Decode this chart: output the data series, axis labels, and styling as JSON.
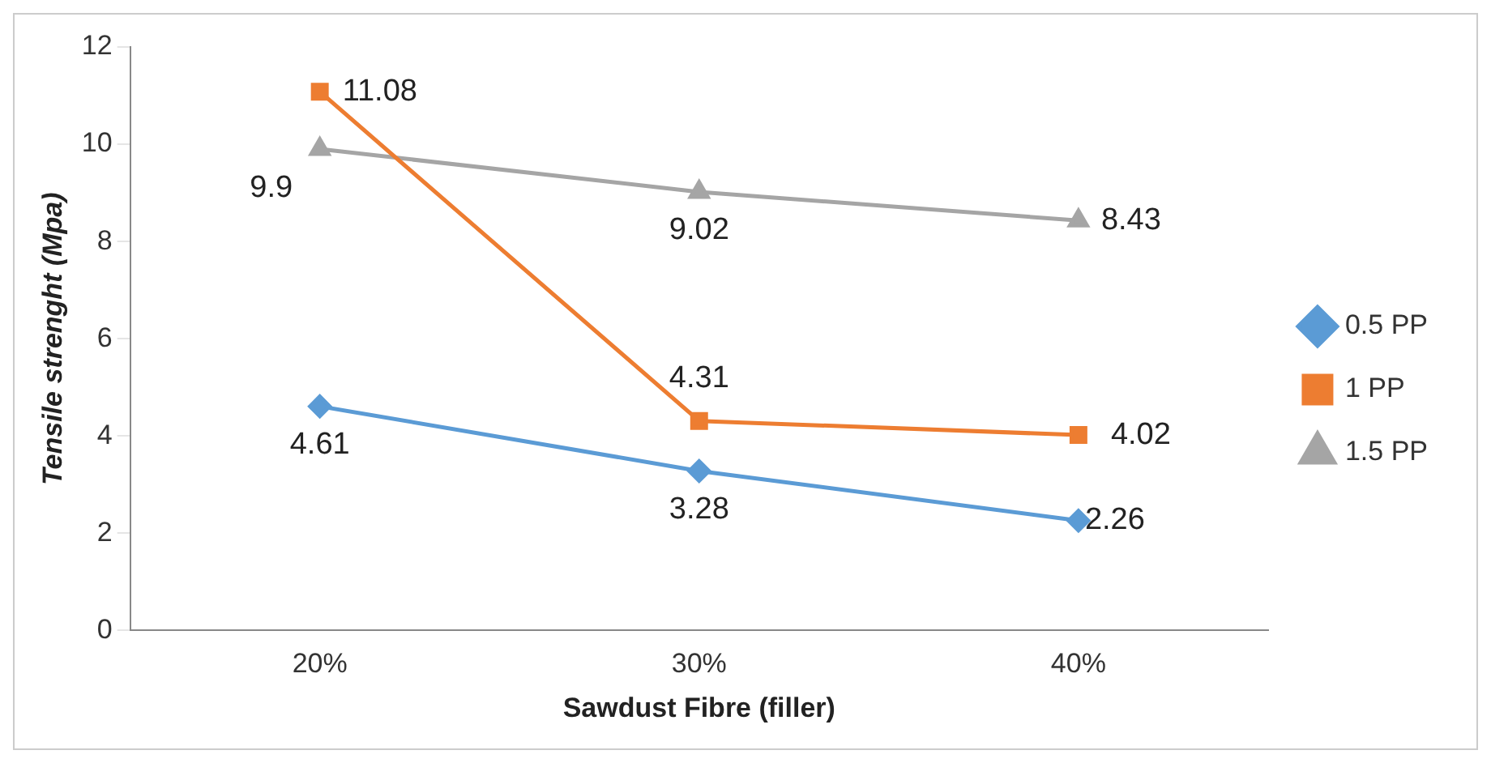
{
  "chart_data": {
    "type": "line",
    "xlabel": "Sawdust Fibre (filler)",
    "ylabel": "Tensile strenght (Mpa)",
    "categories": [
      "20%",
      "30%",
      "40%"
    ],
    "series": [
      {
        "name": "0.5 PP",
        "color": "#5b9bd5",
        "marker": "diamond",
        "values": [
          4.61,
          3.28,
          2.26
        ]
      },
      {
        "name": "1 PP",
        "color": "#ed7d31",
        "marker": "square",
        "values": [
          11.08,
          4.31,
          4.02
        ]
      },
      {
        "name": "1.5 PP",
        "color": "#a5a5a5",
        "marker": "triangle",
        "values": [
          9.9,
          9.02,
          8.43
        ]
      }
    ],
    "ylim": [
      0,
      12
    ],
    "yticks": [
      0,
      2,
      4,
      6,
      8,
      10,
      12
    ],
    "grid": false,
    "legend": "right",
    "data_labels": true
  }
}
